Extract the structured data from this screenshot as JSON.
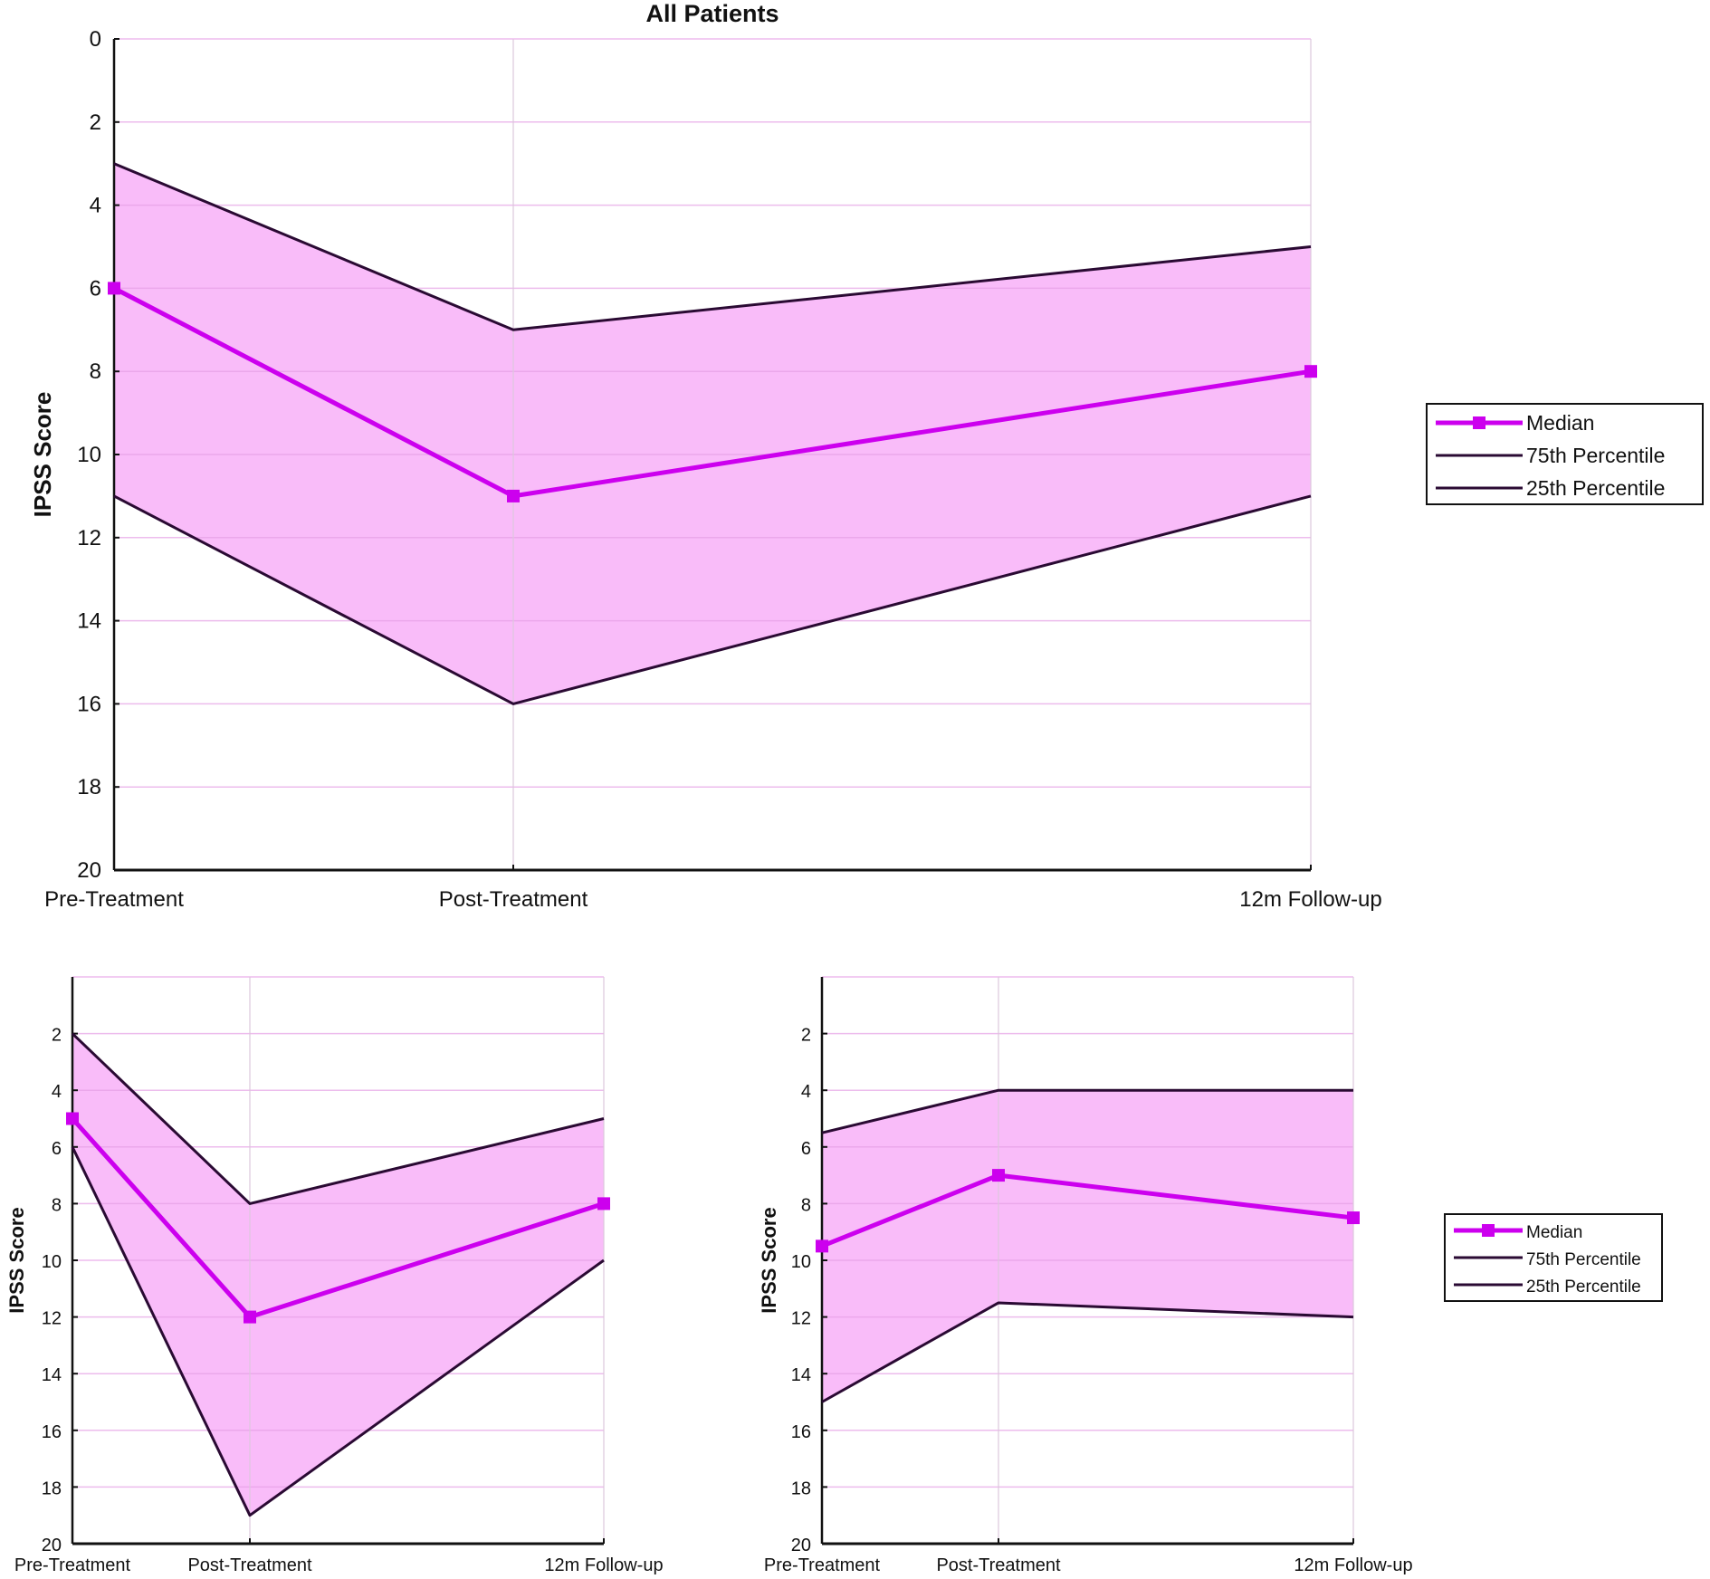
{
  "chart_data": [
    {
      "type": "line",
      "title": "All Patients",
      "categories": [
        "Pre-Treatment",
        "Post-Treatment",
        "12m Follow-up"
      ],
      "ylabel": "IPSS Score",
      "xlabel": "",
      "ylim": [
        20,
        0
      ],
      "y_reversed": true,
      "yticks": [
        "0",
        "2",
        "4",
        "6",
        "8",
        "10",
        "12",
        "14",
        "16",
        "18",
        "20"
      ],
      "grid": true,
      "legend_position": "right",
      "series": [
        {
          "name": "Median",
          "values": [
            6,
            11,
            8
          ],
          "color": "#cc00ee",
          "markers": true
        },
        {
          "name": "75th Percentile",
          "values": [
            3,
            7,
            5
          ],
          "color": "#2a0a33"
        },
        {
          "name": "25th Percentile",
          "values": [
            11,
            16,
            11
          ],
          "color": "#2a0a33"
        }
      ],
      "band_fill": "#f9b8f9"
    },
    {
      "type": "line",
      "title": "",
      "categories": [
        "Pre-Treatment",
        "Post-Treatment",
        "12m Follow-up"
      ],
      "ylabel": "IPSS Score",
      "xlabel": "",
      "ylim": [
        20,
        0
      ],
      "y_reversed": true,
      "yticks": [
        "2",
        "4",
        "6",
        "8",
        "10",
        "12",
        "14",
        "16",
        "18",
        "20"
      ],
      "grid": true,
      "legend_position": "none",
      "series": [
        {
          "name": "Median",
          "values": [
            5,
            12,
            8
          ],
          "color": "#cc00ee",
          "markers": true
        },
        {
          "name": "75th Percentile",
          "values": [
            2,
            8,
            5
          ],
          "color": "#2a0a33"
        },
        {
          "name": "25th Percentile",
          "values": [
            6,
            19,
            10
          ],
          "color": "#2a0a33"
        }
      ],
      "band_fill": "#f9b8f9"
    },
    {
      "type": "line",
      "title": "",
      "categories": [
        "Pre-Treatment",
        "Post-Treatment",
        "12m Follow-up"
      ],
      "ylabel": "IPSS Score",
      "xlabel": "",
      "ylim": [
        20,
        0
      ],
      "y_reversed": true,
      "yticks": [
        "2",
        "4",
        "6",
        "8",
        "10",
        "12",
        "14",
        "16",
        "18",
        "20"
      ],
      "grid": true,
      "legend_position": "right",
      "series": [
        {
          "name": "Median",
          "values": [
            9.5,
            7,
            8.5
          ],
          "color": "#cc00ee",
          "markers": true
        },
        {
          "name": "75th Percentile",
          "values": [
            5.5,
            4,
            4
          ],
          "color": "#2a0a33"
        },
        {
          "name": "25th Percentile",
          "values": [
            15,
            11.5,
            12
          ],
          "color": "#2a0a33"
        }
      ],
      "band_fill": "#f9b8f9"
    }
  ]
}
